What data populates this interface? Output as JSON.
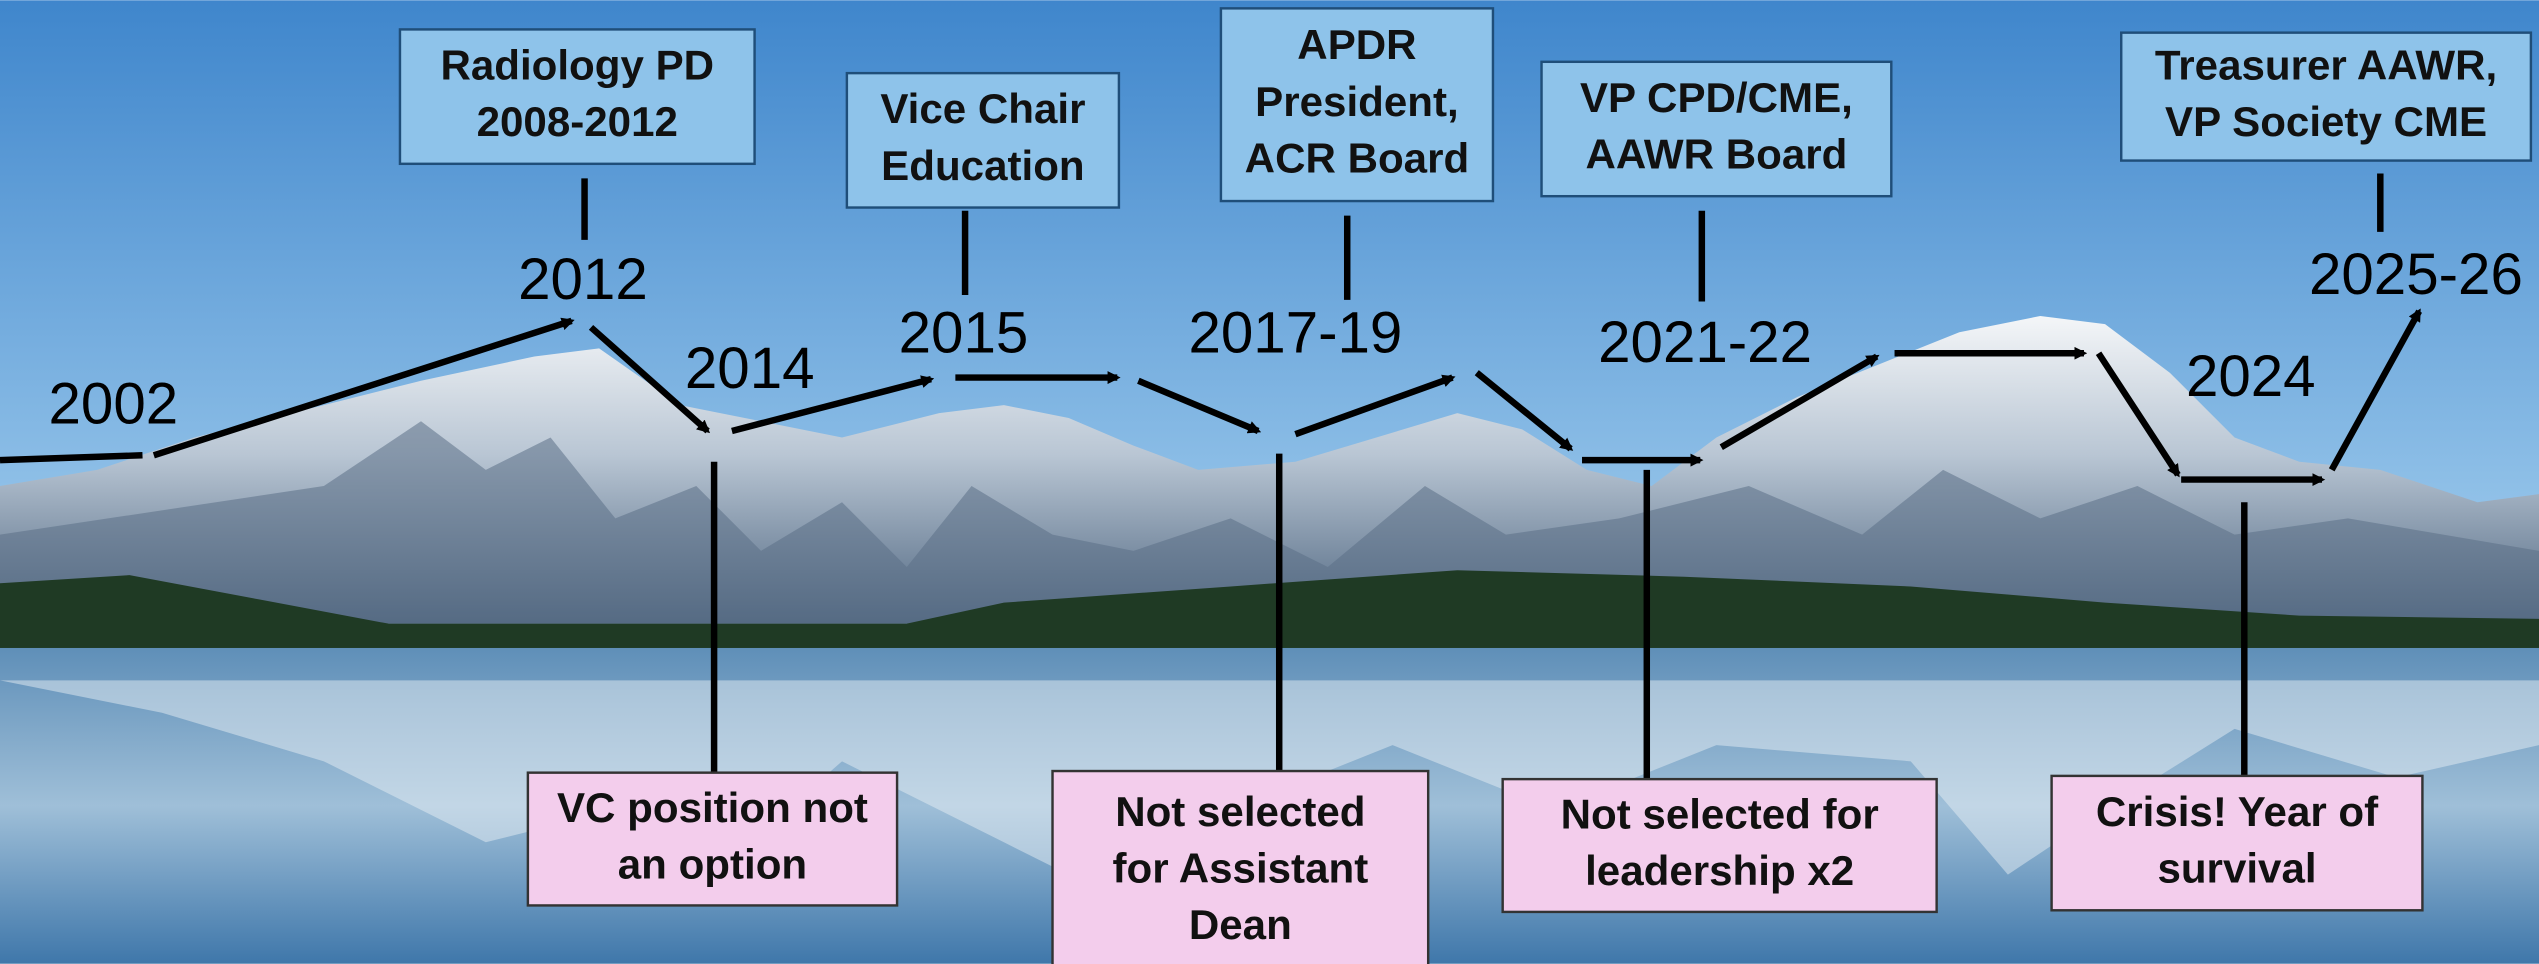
{
  "years": [
    "2002",
    "2012",
    "2014",
    "2015",
    "2017-19",
    "2021-22",
    "2024",
    "2025-26"
  ],
  "milestones": [
    [
      "Radiology PD",
      "2008-2012"
    ],
    [
      "Vice Chair",
      "Education"
    ],
    [
      "APDR",
      "President,",
      "ACR Board"
    ],
    [
      "VP CPD/CME,",
      "AAWR  Board"
    ],
    [
      "Treasurer AAWR,",
      "VP Society CME"
    ]
  ],
  "setbacks": [
    [
      "VC position not",
      "an option"
    ],
    [
      "Not selected",
      "for Assistant",
      "Dean"
    ],
    [
      "Not selected for",
      "leadership x2"
    ],
    [
      "Crisis! Year of",
      "survival"
    ]
  ]
}
